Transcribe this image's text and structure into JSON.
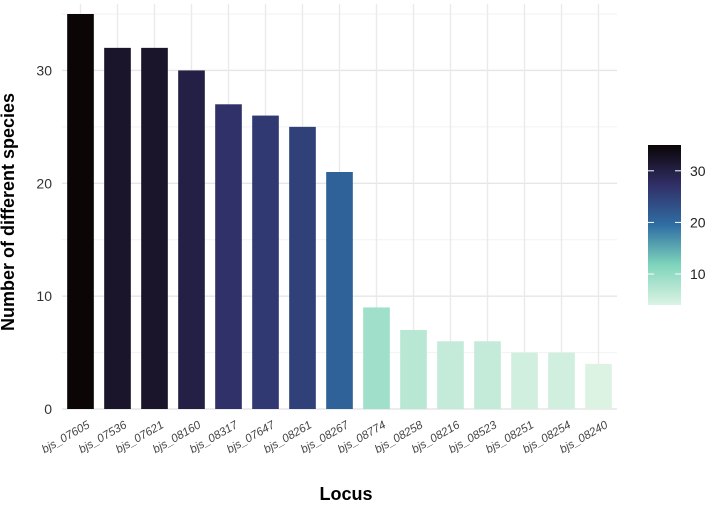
{
  "chart_data": {
    "type": "bar",
    "categories": [
      "bjs_07605",
      "bjs_07536",
      "bjs_07621",
      "bjs_08160",
      "bjs_08317",
      "bjs_07647",
      "bjs_08261",
      "bjs_08267",
      "bjs_08774",
      "bjs_08258",
      "bjs_08216",
      "bjs_08523",
      "bjs_08251",
      "bjs_08254",
      "bjs_08240"
    ],
    "values": [
      35,
      32,
      32,
      30,
      27,
      26,
      25,
      21,
      9,
      7,
      6,
      6,
      5,
      5,
      4
    ],
    "xlabel": "Locus",
    "ylabel": "Number of different species",
    "ylim": [
      0,
      35
    ],
    "yticks": [
      0,
      10,
      20,
      30
    ],
    "grid": true,
    "legend": {
      "placement": "right",
      "type": "colorbar",
      "range": [
        4,
        35
      ],
      "ticks": [
        10,
        20,
        30
      ],
      "colors": [
        "#dcf3e4",
        "#7fd5bb",
        "#2f6ea3",
        "#312f68",
        "#0b0505"
      ]
    }
  }
}
